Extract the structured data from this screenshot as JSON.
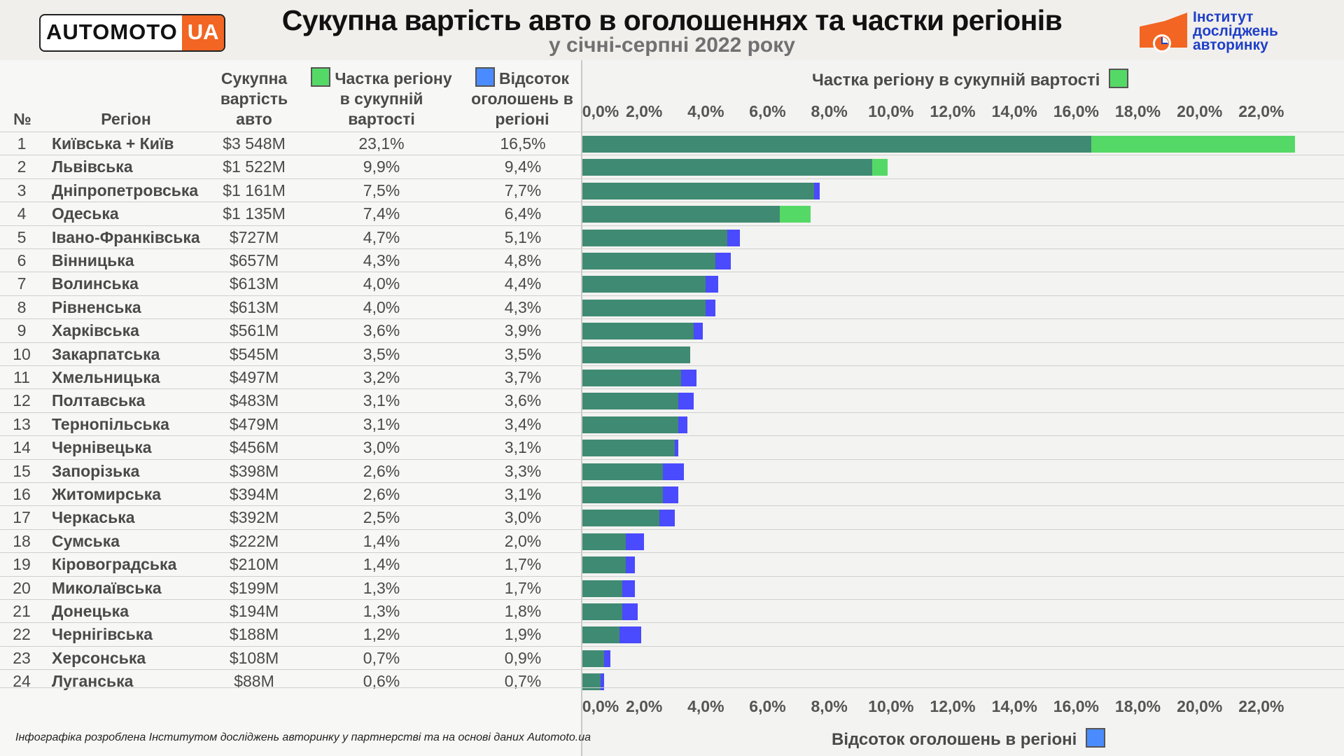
{
  "logo": {
    "part1": "AUTOMOTO",
    "part2": "UA"
  },
  "title": "Сукупна вартість авто в оголошеннях та частки регіонів",
  "subtitle": "у січні-серпні 2022 року",
  "institute": {
    "line1": "Інститут",
    "line2": "досліджень",
    "line3": "авторинку"
  },
  "columns": {
    "num": "№",
    "region": "Регіон",
    "value": [
      "Сукупна",
      "вартість",
      "авто"
    ],
    "share": [
      "Частка регіону",
      "в сукупній",
      "вартості"
    ],
    "percent": [
      "Відсоток",
      "оголошень в",
      "регіоні"
    ]
  },
  "top_axis_title": "Частка регіону в сукупній вартості",
  "bottom_axis_title": "Відсоток оголошень в регіоні",
  "footer": "Інфографіка розроблена Інститутом досліджень авторинку у партнерстві та на основі даних Automoto.ua",
  "colors": {
    "share": "#55d966",
    "percent": "#4a4aff",
    "overlap": "#3f8a72"
  },
  "chart_data": {
    "type": "bar",
    "orientation": "horizontal",
    "x_ticks": [
      "0,0%",
      "2,0%",
      "4,0%",
      "6,0%",
      "8,0%",
      "10,0%",
      "12,0%",
      "14,0%",
      "16,0%",
      "18,0%",
      "20,0%",
      "22,0%"
    ],
    "xlim": [
      0,
      23.5
    ],
    "series": [
      {
        "name": "Частка регіону в сукупній вартості",
        "color": "#55d966",
        "values": [
          23.1,
          9.9,
          7.5,
          7.4,
          4.7,
          4.3,
          4.0,
          4.0,
          3.6,
          3.5,
          3.2,
          3.1,
          3.1,
          3.0,
          2.6,
          2.6,
          2.5,
          1.4,
          1.4,
          1.3,
          1.3,
          1.2,
          0.7,
          0.6
        ]
      },
      {
        "name": "Відсоток оголошень в регіоні",
        "color": "#4a4aff",
        "values": [
          16.5,
          9.4,
          7.7,
          6.4,
          5.1,
          4.8,
          4.4,
          4.3,
          3.9,
          3.5,
          3.7,
          3.6,
          3.4,
          3.1,
          3.3,
          3.1,
          3.0,
          2.0,
          1.7,
          1.7,
          1.8,
          1.9,
          0.9,
          0.7
        ]
      }
    ],
    "rows": [
      {
        "n": "1",
        "region": "Київська + Київ",
        "value": "$3 548M",
        "share": "23,1%",
        "percent": "16,5%"
      },
      {
        "n": "2",
        "region": "Львівська",
        "value": "$1 522M",
        "share": "9,9%",
        "percent": "9,4%"
      },
      {
        "n": "3",
        "region": "Дніпропетровська",
        "value": "$1 161M",
        "share": "7,5%",
        "percent": "7,7%"
      },
      {
        "n": "4",
        "region": "Одеська",
        "value": "$1 135M",
        "share": "7,4%",
        "percent": "6,4%"
      },
      {
        "n": "5",
        "region": "Івано-Франківська",
        "value": "$727M",
        "share": "4,7%",
        "percent": "5,1%"
      },
      {
        "n": "6",
        "region": "Вінницька",
        "value": "$657M",
        "share": "4,3%",
        "percent": "4,8%"
      },
      {
        "n": "7",
        "region": "Волинська",
        "value": "$613M",
        "share": "4,0%",
        "percent": "4,4%"
      },
      {
        "n": "8",
        "region": "Рівненська",
        "value": "$613M",
        "share": "4,0%",
        "percent": "4,3%"
      },
      {
        "n": "9",
        "region": "Харківська",
        "value": "$561M",
        "share": "3,6%",
        "percent": "3,9%"
      },
      {
        "n": "10",
        "region": "Закарпатська",
        "value": "$545M",
        "share": "3,5%",
        "percent": "3,5%"
      },
      {
        "n": "11",
        "region": "Хмельницька",
        "value": "$497M",
        "share": "3,2%",
        "percent": "3,7%"
      },
      {
        "n": "12",
        "region": "Полтавська",
        "value": "$483M",
        "share": "3,1%",
        "percent": "3,6%"
      },
      {
        "n": "13",
        "region": "Тернопільська",
        "value": "$479M",
        "share": "3,1%",
        "percent": "3,4%"
      },
      {
        "n": "14",
        "region": "Чернівецька",
        "value": "$456M",
        "share": "3,0%",
        "percent": "3,1%"
      },
      {
        "n": "15",
        "region": "Запорізька",
        "value": "$398M",
        "share": "2,6%",
        "percent": "3,3%"
      },
      {
        "n": "16",
        "region": "Житомирська",
        "value": "$394M",
        "share": "2,6%",
        "percent": "3,1%"
      },
      {
        "n": "17",
        "region": "Черкаська",
        "value": "$392M",
        "share": "2,5%",
        "percent": "3,0%"
      },
      {
        "n": "18",
        "region": "Сумська",
        "value": "$222M",
        "share": "1,4%",
        "percent": "2,0%"
      },
      {
        "n": "19",
        "region": "Кіровоградська",
        "value": "$210M",
        "share": "1,4%",
        "percent": "1,7%"
      },
      {
        "n": "20",
        "region": "Миколаївська",
        "value": "$199M",
        "share": "1,3%",
        "percent": "1,7%"
      },
      {
        "n": "21",
        "region": "Донецька",
        "value": "$194M",
        "share": "1,3%",
        "percent": "1,8%"
      },
      {
        "n": "22",
        "region": "Чернігівська",
        "value": "$188M",
        "share": "1,2%",
        "percent": "1,9%"
      },
      {
        "n": "23",
        "region": "Херсонська",
        "value": "$108M",
        "share": "0,7%",
        "percent": "0,9%"
      },
      {
        "n": "24",
        "region": "Луганська",
        "value": "$88M",
        "share": "0,6%",
        "percent": "0,7%"
      }
    ]
  }
}
